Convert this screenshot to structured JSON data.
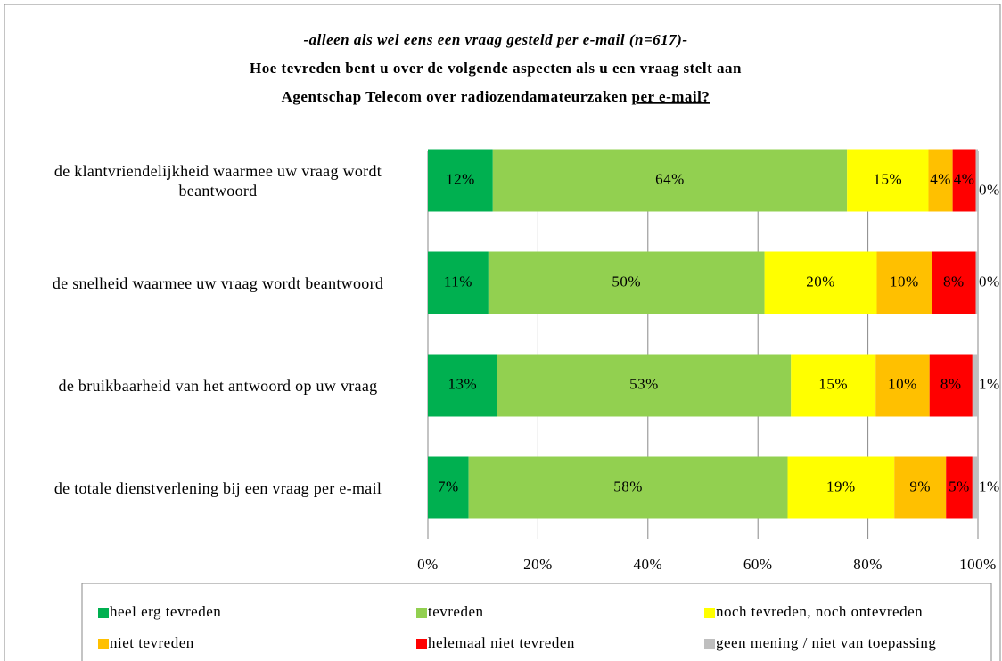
{
  "chart_data": {
    "type": "stacked-bar-horizontal",
    "subtitle": "-alleen als wel eens een vraag gesteld per e-mail (n=617)-",
    "title": [
      "Hoe tevreden bent u over de volgende aspecten als u een vraag stelt aan",
      "Agentschap Telecom over radiozendamateurzaken",
      "per e-mail?"
    ],
    "categories": [
      "de klantvriendelijkheid waarmee uw vraag wordt beantwoord",
      "de snelheid waarmee uw vraag wordt beantwoord",
      "de bruikbaarheid van het antwoord op uw vraag",
      "de totale dienstverlening bij een vraag per e-mail"
    ],
    "series": [
      {
        "name": "heel erg tevreden",
        "color": "#00b050",
        "values": [
          11.8,
          11.0,
          12.6,
          7.4
        ],
        "value_labels": [
          "12%",
          "11%",
          "13%",
          "7%"
        ]
      },
      {
        "name": "tevreden",
        "color": "#92d050",
        "values": [
          64.4,
          50.2,
          53.4,
          58.0
        ],
        "value_labels": [
          "64%",
          "50%",
          "53%",
          "58%"
        ]
      },
      {
        "name": "noch tevreden, noch ontevreden",
        "color": "#ffff00",
        "values": [
          14.8,
          20.4,
          15.4,
          19.4
        ],
        "value_labels": [
          "15%",
          "20%",
          "15%",
          "19%"
        ]
      },
      {
        "name": "niet tevreden",
        "color": "#ffc000",
        "values": [
          4.4,
          10.0,
          9.8,
          9.4
        ],
        "value_labels": [
          "4%",
          "10%",
          "10%",
          "9%"
        ]
      },
      {
        "name": "helemaal niet tevreden",
        "color": "#ff0000",
        "values": [
          4.2,
          8.0,
          7.8,
          4.8
        ],
        "value_labels": [
          "4%",
          "8%",
          "8%",
          "5%"
        ]
      },
      {
        "name": "geen mening / niet van toepassing",
        "color": "#bfbfbf",
        "values": [
          0.4,
          0.4,
          1.0,
          1.0
        ],
        "value_labels": [
          "0%",
          "0%",
          "1%",
          "1%"
        ]
      }
    ],
    "xlim": [
      0,
      100
    ],
    "xticks": [
      {
        "value": 0,
        "label": "0%"
      },
      {
        "value": 20,
        "label": "20%"
      },
      {
        "value": 40,
        "label": "40%"
      },
      {
        "value": 60,
        "label": "60%"
      },
      {
        "value": 80,
        "label": "80%"
      },
      {
        "value": 100,
        "label": "100%"
      }
    ],
    "grid": true,
    "legend": "bottom"
  }
}
